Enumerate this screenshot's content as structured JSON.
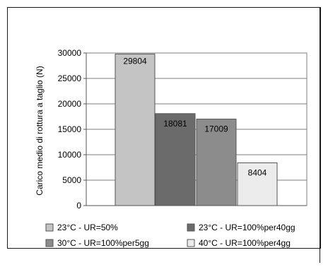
{
  "chart_data": {
    "type": "bar",
    "ylabel": "Carico medio di rottura a taglio (N)",
    "ylim": [
      0,
      30000
    ],
    "yticks": [
      0,
      5000,
      10000,
      15000,
      20000,
      25000,
      30000
    ],
    "grid": true,
    "legend_position": "bottom",
    "series": [
      {
        "name": "23°C - UR=50%",
        "value": 29804,
        "label": "29804",
        "color": "#c4c4c4"
      },
      {
        "name": "23°C - UR=100%per40gg",
        "value": 18081,
        "label": "18081",
        "color": "#6b6b6b"
      },
      {
        "name": "30°C - UR=100%per5gg",
        "value": 17009,
        "label": "17009",
        "color": "#8c8c8c"
      },
      {
        "name": "40°C - UR=100%per4gg",
        "value": 8404,
        "label": "8404",
        "color": "#ececec"
      }
    ]
  }
}
